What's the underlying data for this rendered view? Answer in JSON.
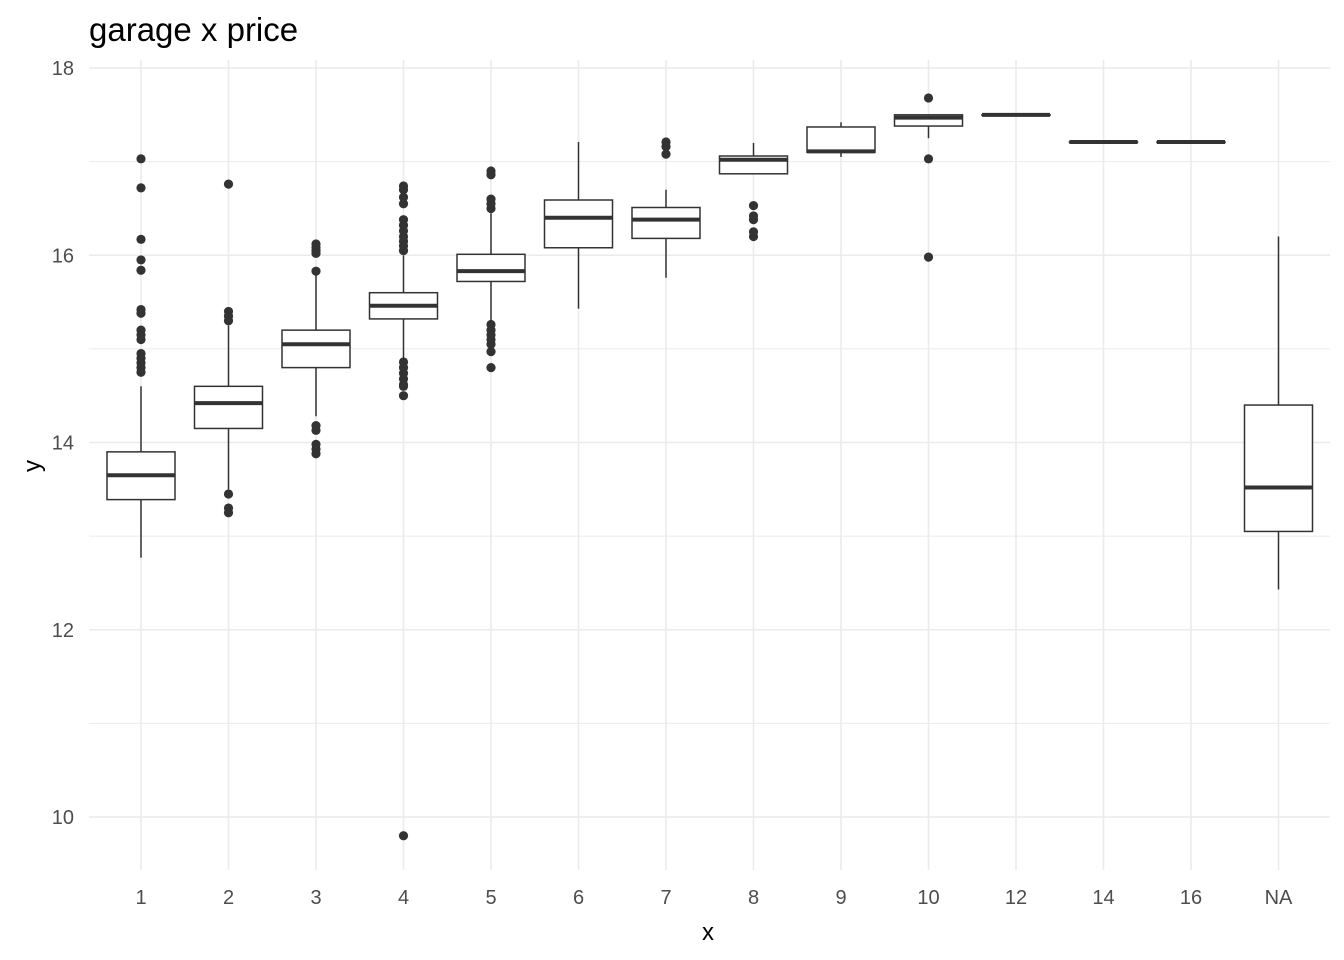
{
  "chart_data": {
    "type": "boxplot",
    "title": "garage x price",
    "xlabel": "x",
    "ylabel": "y",
    "ylim": [
      9.35,
      18.05
    ],
    "y_ticks": [
      "10",
      "12",
      "14",
      "16",
      "18"
    ],
    "grid": true,
    "theme": "minimal",
    "colors": {
      "grid": "#ebebeb",
      "box": "#333333",
      "tick_text": "#4d4d4d",
      "title_text": "#000000"
    },
    "categories": [
      "1",
      "2",
      "3",
      "4",
      "5",
      "6",
      "7",
      "8",
      "9",
      "10",
      "12",
      "14",
      "16",
      "NA"
    ],
    "boxes": [
      {
        "x": "1",
        "lower_whisker": 12.77,
        "q1": 13.39,
        "median": 13.65,
        "q3": 13.9,
        "upper_whisker": 14.6,
        "outliers": [
          17.03,
          16.72,
          16.17,
          15.95,
          15.84,
          15.42,
          15.38,
          15.2,
          15.15,
          15.1,
          14.95,
          14.9,
          14.85,
          14.8,
          14.75
        ]
      },
      {
        "x": "2",
        "lower_whisker": 13.5,
        "q1": 14.15,
        "median": 14.42,
        "q3": 14.6,
        "upper_whisker": 15.25,
        "outliers": [
          16.76,
          15.4,
          15.35,
          15.3,
          13.45,
          13.3,
          13.25
        ]
      },
      {
        "x": "3",
        "lower_whisker": 14.28,
        "q1": 14.8,
        "median": 15.05,
        "q3": 15.2,
        "upper_whisker": 15.8,
        "outliers": [
          16.12,
          16.08,
          16.05,
          16.02,
          15.83,
          14.18,
          14.13,
          13.98,
          13.93,
          13.88
        ]
      },
      {
        "x": "4",
        "lower_whisker": 14.9,
        "q1": 15.32,
        "median": 15.46,
        "q3": 15.6,
        "upper_whisker": 16.0,
        "outliers": [
          16.74,
          16.7,
          16.62,
          16.55,
          16.38,
          16.32,
          16.26,
          16.2,
          16.15,
          16.1,
          16.05,
          14.86,
          14.8,
          14.74,
          14.68,
          14.62,
          14.6,
          14.5,
          9.8
        ]
      },
      {
        "x": "5",
        "lower_whisker": 15.3,
        "q1": 15.72,
        "median": 15.83,
        "q3": 16.01,
        "upper_whisker": 16.45,
        "outliers": [
          16.9,
          16.86,
          16.6,
          16.55,
          16.5,
          15.26,
          15.2,
          15.15,
          15.1,
          15.05,
          14.97,
          14.8
        ]
      },
      {
        "x": "6",
        "lower_whisker": 15.43,
        "q1": 16.08,
        "median": 16.4,
        "q3": 16.59,
        "upper_whisker": 17.21,
        "outliers": []
      },
      {
        "x": "7",
        "lower_whisker": 15.76,
        "q1": 16.18,
        "median": 16.38,
        "q3": 16.51,
        "upper_whisker": 16.7,
        "outliers": [
          17.21,
          17.16,
          17.08
        ]
      },
      {
        "x": "8",
        "lower_whisker": 16.87,
        "q1": 16.87,
        "median": 17.02,
        "q3": 17.06,
        "upper_whisker": 17.2,
        "outliers": [
          16.53,
          16.42,
          16.38,
          16.25,
          16.2
        ]
      },
      {
        "x": "9",
        "lower_whisker": 17.05,
        "q1": 17.1,
        "median": 17.11,
        "q3": 17.37,
        "upper_whisker": 17.42,
        "outliers": []
      },
      {
        "x": "10",
        "lower_whisker": 17.25,
        "q1": 17.38,
        "median": 17.47,
        "q3": 17.5,
        "upper_whisker": 17.5,
        "outliers": [
          17.68,
          17.03,
          15.98
        ]
      },
      {
        "x": "12",
        "lower_whisker": 17.5,
        "q1": 17.5,
        "median": 17.5,
        "q3": 17.5,
        "upper_whisker": 17.5,
        "outliers": []
      },
      {
        "x": "14",
        "lower_whisker": 17.21,
        "q1": 17.21,
        "median": 17.21,
        "q3": 17.21,
        "upper_whisker": 17.21,
        "outliers": []
      },
      {
        "x": "16",
        "lower_whisker": 17.21,
        "q1": 17.21,
        "median": 17.21,
        "q3": 17.21,
        "upper_whisker": 17.21,
        "outliers": []
      },
      {
        "x": "NA",
        "lower_whisker": 12.43,
        "q1": 13.05,
        "median": 13.52,
        "q3": 14.4,
        "upper_whisker": 16.2,
        "outliers": []
      }
    ]
  }
}
